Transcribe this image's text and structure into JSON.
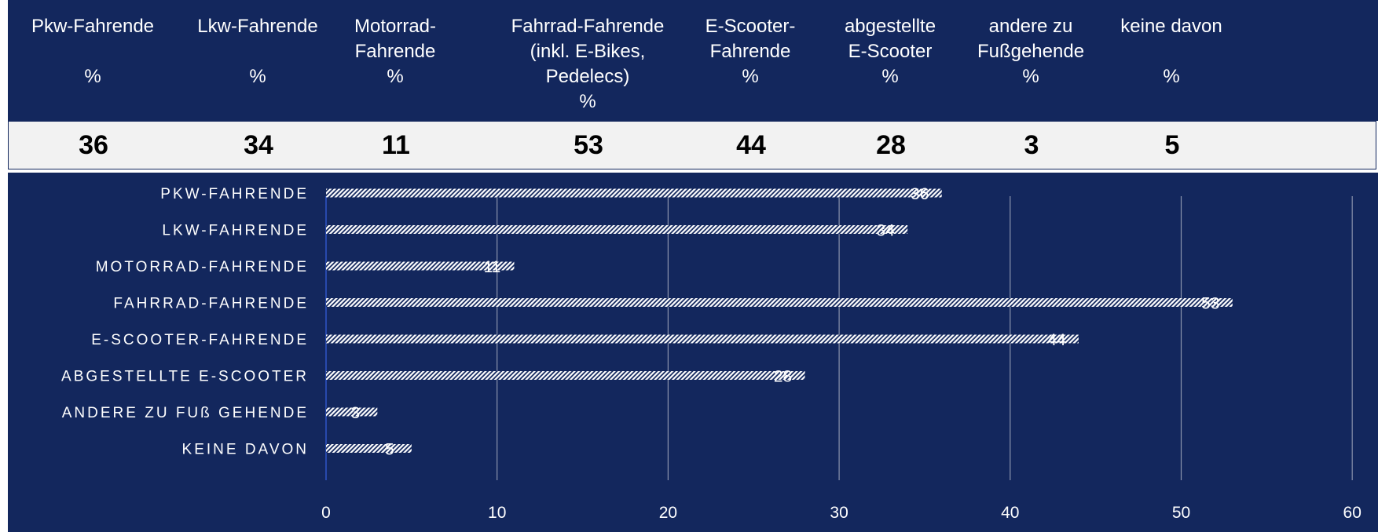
{
  "table": {
    "headers": [
      [
        "Pkw-Fahrende",
        "",
        "%"
      ],
      [
        "Lkw-Fahrende",
        "",
        "%"
      ],
      [
        "Motorrad-",
        "Fahrende",
        "%"
      ],
      [
        "Fahrrad-Fahrende",
        "(inkl. E-Bikes,",
        "Pedelecs)",
        "%"
      ],
      [
        "E-Scooter-",
        "Fahrende",
        "%"
      ],
      [
        "abgestellte",
        "E-Scooter",
        "%"
      ],
      [
        "andere zu",
        "Fußgehende",
        "%"
      ],
      [
        "keine davon",
        "",
        "%"
      ]
    ],
    "values": [
      "36",
      "34",
      "11",
      "53",
      "44",
      "28",
      "3",
      "5"
    ]
  },
  "chart_data": {
    "type": "bar",
    "orientation": "horizontal",
    "categories": [
      "PKW-FAHRENDE",
      "LKW-FAHRENDE",
      "MOTORRAD-FAHRENDE",
      "FAHRRAD-FAHRENDE",
      "E-SCOOTER-FAHRENDE",
      "ABGESTELLTE E-SCOOTER",
      "ANDERE ZU FUß GEHENDE",
      "KEINE DAVON"
    ],
    "values": [
      36,
      34,
      11,
      53,
      44,
      28,
      3,
      5
    ],
    "xlim": [
      0,
      60
    ],
    "xticks": [
      0,
      10,
      20,
      30,
      40,
      50,
      60
    ],
    "grid": true,
    "data_labels": true,
    "colors": {
      "background": "#13275d",
      "bar": "#ffffff",
      "grid": "#8a93ad",
      "text": "#ffffff"
    }
  }
}
